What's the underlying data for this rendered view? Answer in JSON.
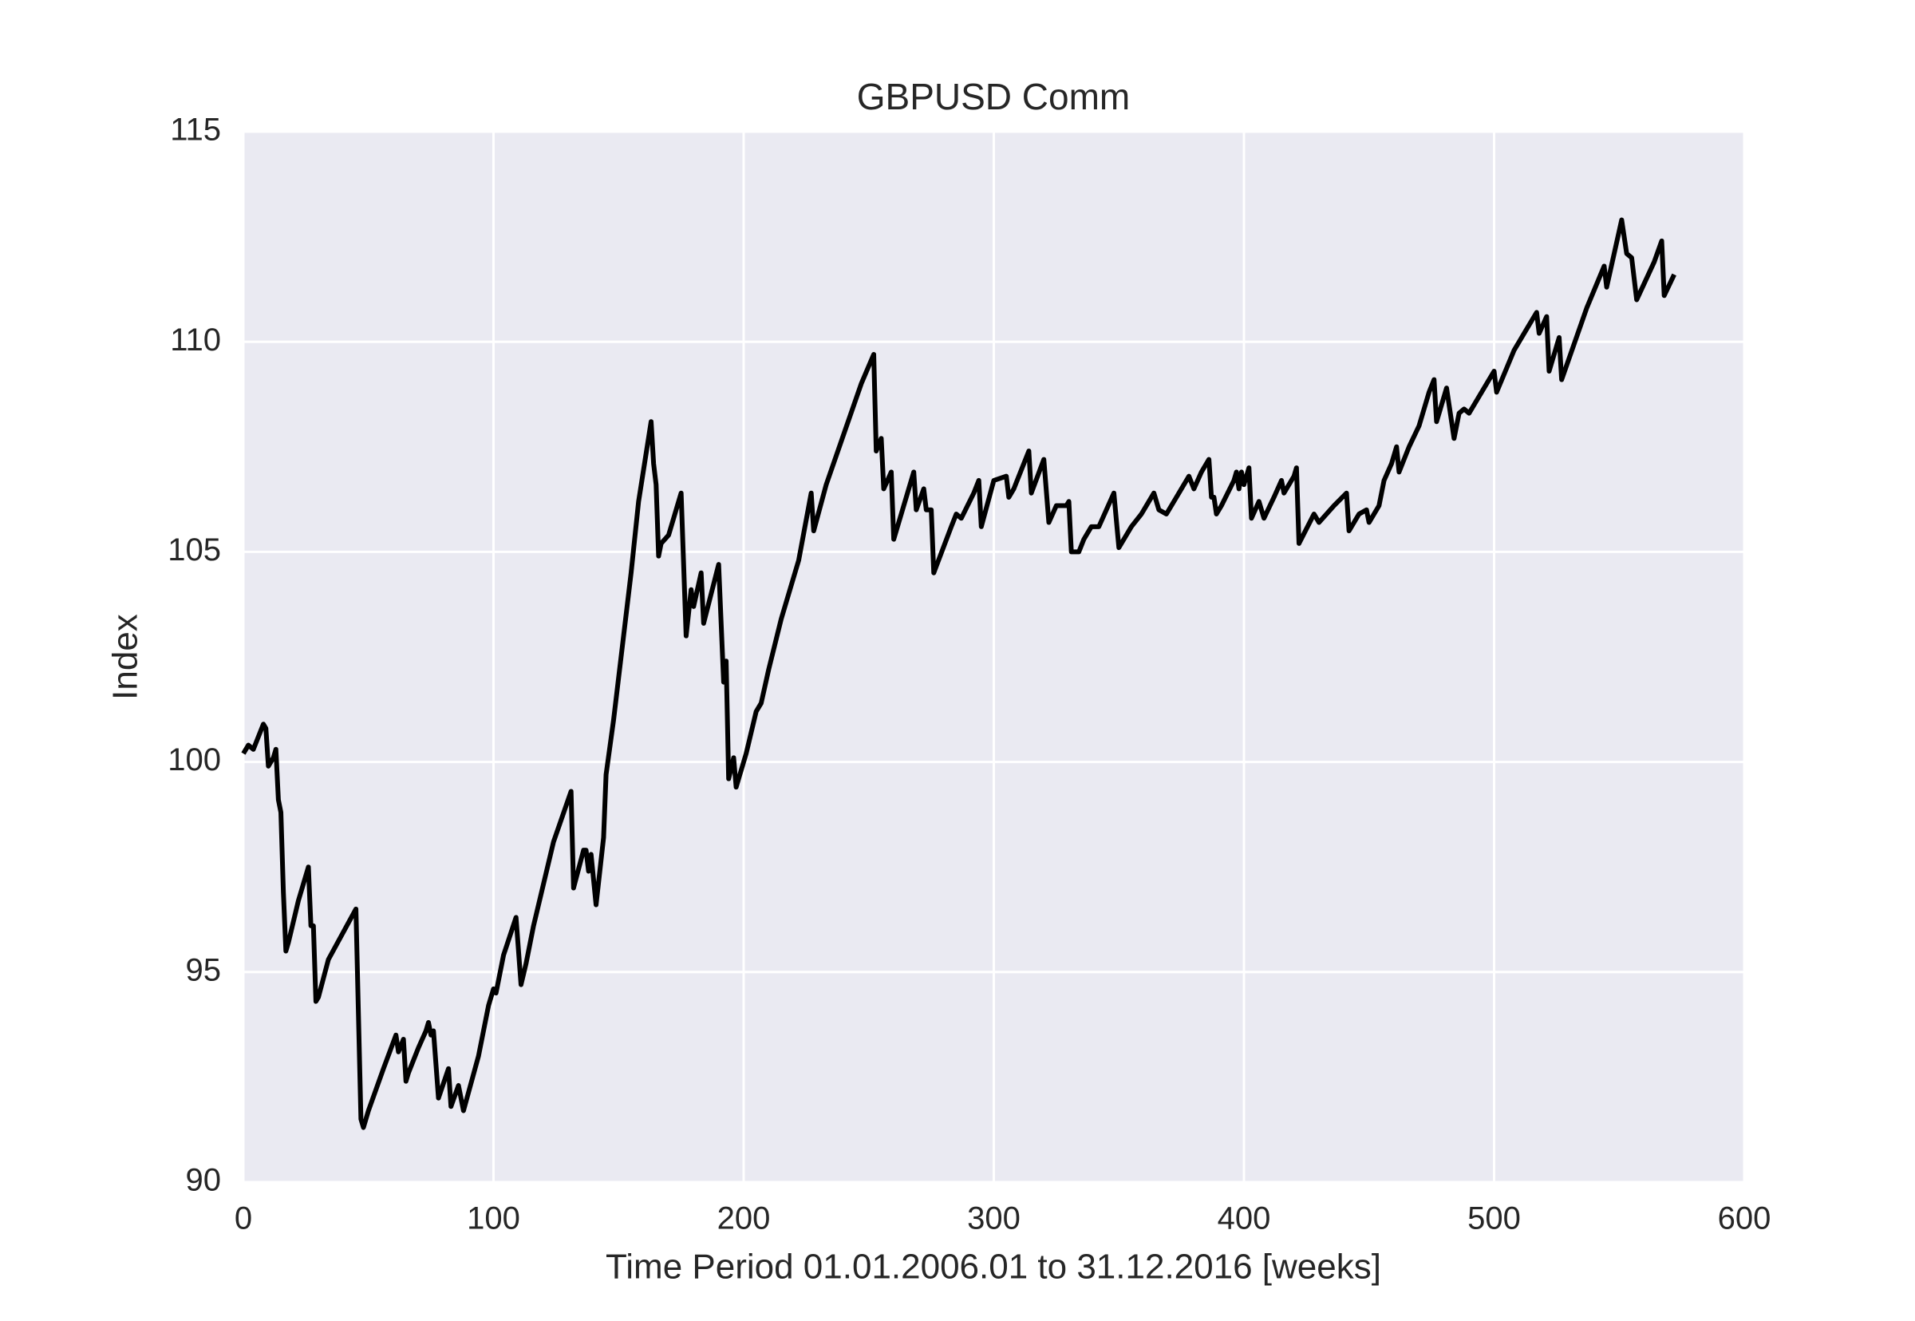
{
  "chart_data": {
    "type": "line",
    "title": "GBPUSD Comm",
    "xlabel": "Time Period 01.01.2006.01 to 31.12.2016 [weeks]",
    "ylabel": "Index",
    "x": [
      0,
      2,
      4,
      8,
      9,
      10,
      12,
      13,
      14,
      15,
      16,
      17,
      18,
      22,
      26,
      27,
      28,
      29,
      30,
      34,
      45,
      47,
      48,
      50,
      56,
      61,
      62,
      64,
      65,
      66,
      70,
      73,
      74,
      75,
      76,
      78,
      82,
      83,
      86,
      88,
      94,
      98,
      100,
      101,
      104,
      109,
      111,
      113,
      116,
      124,
      131,
      132,
      136,
      137,
      138,
      139,
      141,
      144,
      145,
      148,
      152,
      155,
      158,
      163,
      164,
      165,
      166,
      167,
      170,
      175,
      177,
      179,
      180,
      183,
      184,
      190,
      192,
      193,
      194,
      196,
      197,
      201,
      205,
      207,
      210,
      215,
      222,
      227,
      228,
      233,
      240,
      247,
      252,
      253,
      255,
      256,
      259,
      260,
      268,
      269,
      272,
      273,
      275,
      276,
      283,
      285,
      287,
      292,
      294,
      295,
      300,
      305,
      306,
      308,
      312,
      314,
      315,
      320,
      322,
      325,
      329,
      330,
      331,
      334,
      336,
      339,
      342,
      348,
      350,
      355,
      359,
      364,
      366,
      369,
      372,
      375,
      378,
      380,
      383,
      386,
      387,
      388,
      389,
      391,
      396,
      397,
      398,
      399,
      400,
      402,
      403,
      406,
      408,
      412,
      415,
      416,
      420,
      421,
      422,
      428,
      430,
      436,
      441,
      442,
      446,
      449,
      450,
      454,
      456,
      459,
      461,
      462,
      466,
      470,
      474,
      476,
      477,
      481,
      484,
      486,
      488,
      490,
      500,
      501,
      508,
      517,
      518,
      521,
      522,
      526,
      527,
      537,
      544,
      545,
      551,
      553,
      555,
      557,
      564,
      567,
      568,
      572
    ],
    "series": [
      {
        "name": "GBPUSD Comm",
        "color": "#000000",
        "values": [
          100.2,
          100.4,
          100.3,
          100.9,
          100.8,
          99.9,
          100.1,
          100.3,
          99.1,
          98.8,
          96.9,
          95.5,
          95.7,
          96.7,
          97.5,
          96.1,
          96.1,
          94.3,
          94.4,
          95.3,
          96.5,
          91.5,
          91.3,
          91.7,
          92.7,
          93.5,
          93.1,
          93.4,
          92.4,
          92.6,
          93.2,
          93.6,
          93.8,
          93.5,
          93.6,
          92.0,
          92.7,
          91.8,
          92.3,
          91.7,
          93.0,
          94.2,
          94.6,
          94.5,
          95.4,
          96.3,
          94.7,
          95.2,
          96.1,
          98.1,
          99.3,
          97.0,
          97.9,
          97.9,
          97.4,
          97.8,
          96.6,
          98.2,
          99.7,
          101.0,
          103.0,
          104.5,
          106.2,
          108.1,
          107.1,
          106.6,
          104.9,
          105.2,
          105.4,
          106.4,
          103.0,
          104.1,
          103.7,
          104.5,
          103.3,
          104.7,
          101.9,
          102.4,
          99.6,
          100.1,
          99.4,
          100.2,
          101.2,
          101.4,
          102.2,
          103.4,
          104.8,
          106.4,
          105.5,
          106.6,
          107.8,
          109.0,
          109.7,
          107.4,
          107.7,
          106.5,
          106.9,
          105.3,
          106.9,
          106.0,
          106.5,
          106.0,
          106.0,
          104.5,
          105.6,
          105.9,
          105.8,
          106.4,
          106.7,
          105.6,
          106.7,
          106.8,
          106.3,
          106.5,
          107.1,
          107.4,
          106.4,
          107.2,
          105.7,
          106.1,
          106.1,
          106.2,
          105.0,
          105.0,
          105.3,
          105.6,
          105.6,
          106.4,
          105.1,
          105.6,
          105.9,
          106.4,
          106.0,
          105.9,
          106.2,
          106.5,
          106.8,
          106.5,
          106.9,
          107.2,
          106.3,
          106.3,
          105.9,
          106.1,
          106.7,
          106.9,
          106.5,
          106.9,
          106.6,
          107.0,
          105.8,
          106.2,
          105.8,
          106.3,
          106.7,
          106.4,
          106.8,
          107.0,
          105.2,
          105.9,
          105.7,
          106.1,
          106.4,
          105.5,
          105.9,
          106.0,
          105.7,
          106.1,
          106.7,
          107.1,
          107.5,
          106.9,
          107.5,
          108.0,
          108.8,
          109.1,
          108.1,
          108.9,
          107.7,
          108.3,
          108.4,
          108.3,
          109.3,
          108.8,
          109.8,
          110.7,
          110.2,
          110.6,
          109.3,
          110.1,
          109.1,
          110.8,
          111.8,
          111.3,
          112.9,
          112.1,
          112.0,
          111.0,
          111.9,
          112.4,
          111.1,
          111.6
        ]
      }
    ],
    "xlim": [
      0,
      600
    ],
    "xticks": [
      0,
      100,
      200,
      300,
      400,
      500,
      600
    ],
    "ylim": [
      90,
      115
    ],
    "yticks": [
      90,
      95,
      100,
      105,
      110,
      115
    ],
    "grid": true
  }
}
